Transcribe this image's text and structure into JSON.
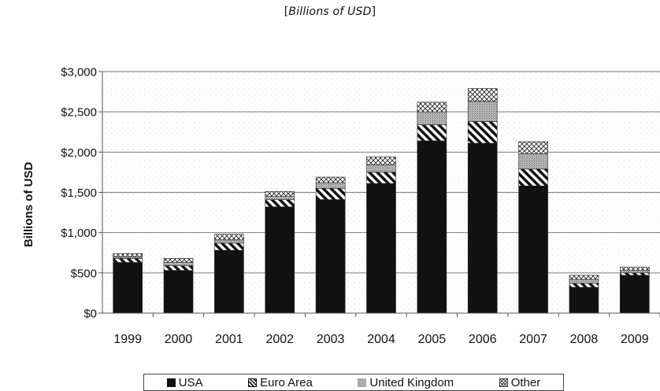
{
  "chart_data": {
    "type": "bar",
    "stacked": true,
    "title": "",
    "subtitle_prefix": "[",
    "subtitle": "Billions of USD",
    "subtitle_suffix": "]",
    "xlabel": "",
    "ylabel": "Billions of USD",
    "ylim": [
      0,
      3000
    ],
    "yticks": [
      0,
      500,
      1000,
      1500,
      2000,
      2500,
      3000
    ],
    "ytick_labels": [
      "$0",
      "$500",
      "$1,000",
      "$1,500",
      "$2,000",
      "$2,500",
      "$3,000"
    ],
    "grid": true,
    "legend_position": "bottom",
    "categories": [
      "1999",
      "2000",
      "2001",
      "2002",
      "2003",
      "2004",
      "2005",
      "2006",
      "2007",
      "2008",
      "2009"
    ],
    "series": [
      {
        "name": "USA",
        "pattern": "solid",
        "color": "#111111",
        "values": [
          630,
          530,
          780,
          1320,
          1410,
          1610,
          2140,
          2110,
          1580,
          320,
          470
        ]
      },
      {
        "name": "Euro Area",
        "pattern": "diagonal",
        "color": "#333333",
        "values": [
          50,
          60,
          90,
          90,
          140,
          140,
          200,
          270,
          210,
          50,
          30
        ]
      },
      {
        "name": "United Kingdom",
        "pattern": "stipple",
        "color": "#999999",
        "values": [
          20,
          40,
          40,
          40,
          70,
          90,
          160,
          250,
          190,
          50,
          30
        ]
      },
      {
        "name": "Other",
        "pattern": "crosshatch",
        "color": "#555555",
        "values": [
          40,
          50,
          70,
          60,
          70,
          100,
          120,
          160,
          150,
          50,
          40
        ]
      }
    ]
  }
}
